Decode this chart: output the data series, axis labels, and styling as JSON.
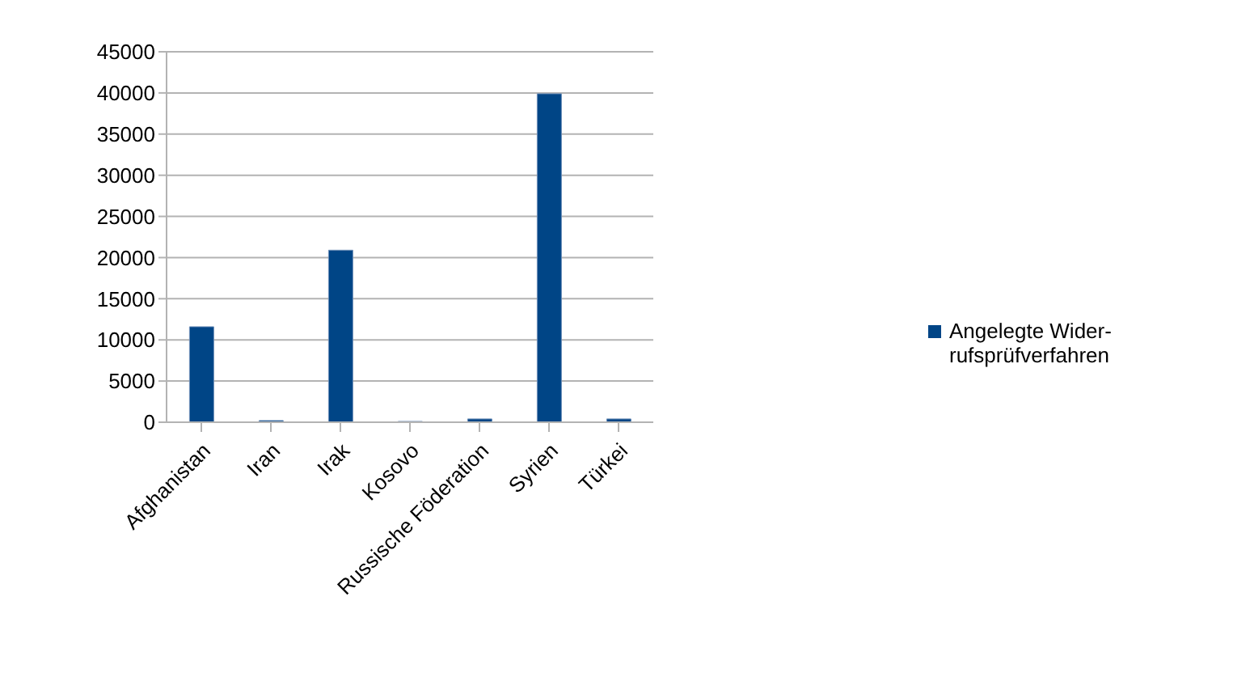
{
  "chart_data": {
    "type": "bar",
    "categories": [
      "Afghanistan",
      "Iran",
      "Irak",
      "Kosovo",
      "Russische Föderation",
      "Syrien",
      "Türkei"
    ],
    "series": [
      {
        "name": "Angelegte Wider-rufsprüfverfahren",
        "color": "#004586",
        "values": [
          11600,
          200,
          20900,
          100,
          400,
          39900,
          400
        ]
      }
    ],
    "ylim": [
      0,
      45000
    ],
    "yticks": [
      0,
      5000,
      10000,
      15000,
      20000,
      25000,
      30000,
      35000,
      40000,
      45000
    ],
    "grid": "y",
    "legend": "right"
  }
}
